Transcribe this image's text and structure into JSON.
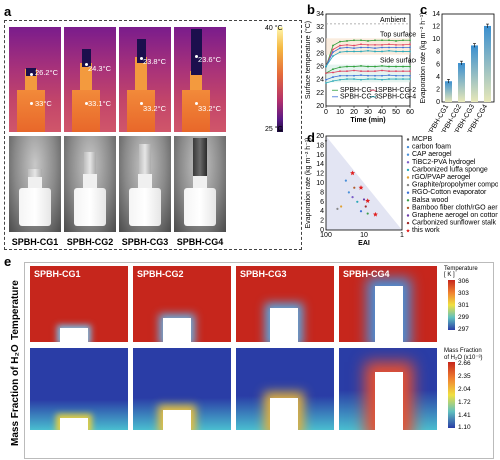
{
  "panel_labels": {
    "a": "a",
    "b": "b",
    "c": "c",
    "d": "d",
    "e": "e"
  },
  "panel_a": {
    "colorbar_max": "40 °C",
    "colorbar_min": "25 °C",
    "samples": [
      {
        "name": "SPBH-CG1",
        "top_temp": "26.2°C",
        "bottom_temp": "33°C"
      },
      {
        "name": "SPBH-CG2",
        "top_temp": "24.3°C",
        "bottom_temp": "33.1°C"
      },
      {
        "name": "SPBH-CG3",
        "top_temp": "23.8°C",
        "bottom_temp": "33.2°C"
      },
      {
        "name": "SPBH-CG4",
        "top_temp": "23.6°C",
        "bottom_temp": "33.2°C"
      }
    ]
  },
  "chart_data": [
    {
      "type": "line",
      "ylabel": "Surface temperature (°C)",
      "xlabel": "Time (min)",
      "xlim": [
        0,
        60
      ],
      "ylim": [
        20,
        34
      ],
      "x": [
        0,
        5,
        10,
        15,
        20,
        25,
        30,
        35,
        40,
        45,
        50,
        55,
        60
      ],
      "annotations": [
        "Ambient",
        "Top surface",
        "Side surface"
      ],
      "series": [
        {
          "name": "SPBH-CG-1",
          "color": "#2e9e3a",
          "values": [
            26,
            29.2,
            29.8,
            29.9,
            30,
            30,
            29.9,
            30,
            30,
            30,
            29.9,
            30,
            30
          ]
        },
        {
          "name": "SPBH-CG-2",
          "color": "#e04060",
          "values": [
            26,
            28.6,
            29.2,
            29.3,
            29.2,
            29.4,
            29.3,
            29.3,
            29.3,
            29.4,
            29.3,
            29.3,
            29.4
          ]
        },
        {
          "name": "SPBH-CG-3",
          "color": "#3a6fd8",
          "values": [
            26,
            28.2,
            28.8,
            28.9,
            28.8,
            28.9,
            28.9,
            28.8,
            28.9,
            28.9,
            28.9,
            28.9,
            28.9
          ]
        },
        {
          "name": "SPBH-CG-4",
          "color": "#2aa8b8",
          "values": [
            26,
            27.6,
            28.2,
            28.3,
            28.3,
            28.3,
            28.4,
            28.3,
            28.3,
            28.4,
            28.3,
            28.3,
            28.3
          ]
        },
        {
          "name": "",
          "color": "#2e9e3a",
          "values": [
            25,
            25.6,
            25.9,
            26.0,
            26.0,
            26.1,
            26.0,
            26.0,
            26.1,
            26.0,
            26.0,
            26.0,
            26.0
          ]
        },
        {
          "name": "",
          "color": "#e04060",
          "values": [
            25,
            25.1,
            25.3,
            25.3,
            25.4,
            25.3,
            25.3,
            25.3,
            25.4,
            25.3,
            25.3,
            25.3,
            25.3
          ]
        },
        {
          "name": "",
          "color": "#3a6fd8",
          "values": [
            24,
            24.4,
            24.6,
            24.6,
            24.6,
            24.7,
            24.6,
            24.6,
            24.6,
            24.7,
            24.6,
            24.6,
            24.6
          ]
        },
        {
          "name": "",
          "color": "#2aa8b8",
          "values": [
            23.5,
            23.8,
            24.0,
            24.1,
            24.1,
            24.0,
            24.1,
            24.1,
            24.0,
            24.1,
            24.1,
            24.1,
            24.1
          ]
        }
      ],
      "ambient": 32.5
    },
    {
      "type": "bar",
      "ylabel": "Evaporation rate (kg m⁻² h⁻¹)",
      "categories": [
        "SPBH-CG1",
        "SPBH-CG2",
        "SPBH-CG3",
        "SPBH-CG4"
      ],
      "values": [
        3.3,
        6.2,
        9.0,
        12.1
      ],
      "errors": [
        0.3,
        0.3,
        0.3,
        0.3
      ],
      "ylim": [
        0,
        14
      ],
      "yticks": [
        0,
        2,
        4,
        6,
        8,
        10,
        12,
        14
      ]
    },
    {
      "type": "scatter",
      "ylabel": "Evaporation rate (kg m⁻² h⁻¹)",
      "xlabel": "EAI",
      "xscale": "log-reversed",
      "xticks": [
        "100",
        "10",
        "1"
      ],
      "ylim": [
        0,
        20
      ],
      "yticks": [
        0,
        2,
        4,
        6,
        8,
        10,
        12,
        14,
        16,
        18,
        20
      ],
      "legend": [
        {
          "name": "MCPB",
          "color": "#555555"
        },
        {
          "name": "carbon foam",
          "color": "#4a90d9"
        },
        {
          "name": "CAP aerogel",
          "color": "#4a90d9"
        },
        {
          "name": "TiBC2-PVA hydrogel",
          "color": "#7a5cc8"
        },
        {
          "name": "Carbonized luffa sponge",
          "color": "#2aa8b8"
        },
        {
          "name": "rGO/PVAP aerogel",
          "color": "#e0a030"
        },
        {
          "name": "Graphite/propolymer composite",
          "color": "#888888"
        },
        {
          "name": "RGO-Cotton evaporator",
          "color": "#3a6fd8"
        },
        {
          "name": "Balsa wood",
          "color": "#3a9e4a"
        },
        {
          "name": "Bamboo fiber cloth/rGO aeroge",
          "color": "#b05a2a"
        },
        {
          "name": "Graphene aerogel on cotton",
          "color": "#6a3aa8"
        },
        {
          "name": "Carbonized sunflower stalk",
          "color": "#a02a2a"
        },
        {
          "name": "this work",
          "color": "#e02020"
        }
      ],
      "points": [
        {
          "x": 100,
          "y": 19,
          "series": "MCPB"
        },
        {
          "x": 30,
          "y": 10.5,
          "series": "carbon foam"
        },
        {
          "x": 25,
          "y": 8,
          "series": "CAP aerogel"
        },
        {
          "x": 20,
          "y": 7,
          "series": "TiBC2-PVA hydrogel"
        },
        {
          "x": 15,
          "y": 6,
          "series": "Carbonized luffa sponge"
        },
        {
          "x": 40,
          "y": 5,
          "series": "rGO/PVAP aerogel"
        },
        {
          "x": 50,
          "y": 4.5,
          "series": "Graphite/propolymer composite"
        },
        {
          "x": 12,
          "y": 4,
          "series": "RGO-Cotton evaporator"
        },
        {
          "x": 8,
          "y": 3.5,
          "series": "Balsa wood"
        },
        {
          "x": 18,
          "y": 9,
          "series": "Bamboo fiber cloth/rGO aeroge"
        },
        {
          "x": 10,
          "y": 6.5,
          "series": "Graphene aerogel on cotton"
        },
        {
          "x": 9,
          "y": 5,
          "series": "Carbonized sunflower stalk"
        },
        {
          "x": 20,
          "y": 12.1,
          "series": "this work"
        },
        {
          "x": 12,
          "y": 9.0,
          "series": "this work"
        },
        {
          "x": 8,
          "y": 6.2,
          "series": "this work"
        },
        {
          "x": 5,
          "y": 3.3,
          "series": "this work"
        }
      ]
    }
  ],
  "panel_e": {
    "samples": [
      "SPBH-CG1",
      "SPBH-CG2",
      "SPBH-CG3",
      "SPBH-CG4"
    ],
    "row_temperature": "Temperature",
    "row_mass": "Mass Fraction of H₂O",
    "temp_bar_title": "Temperature\n[ K ]",
    "temp_ticks": [
      "306",
      "303",
      "301",
      "299",
      "297"
    ],
    "mass_bar_title": "Mass Fraction\nof H₂O (x10⁻³)",
    "mass_ticks": [
      "2.66",
      "2.35",
      "2.04",
      "1.72",
      "1.41",
      "1.10"
    ],
    "colors": {
      "temp_hot": "#c6261c",
      "temp_cold": "#2a3da6",
      "mass_low": "#2a3da6",
      "mass_high": "#c6261c"
    }
  }
}
